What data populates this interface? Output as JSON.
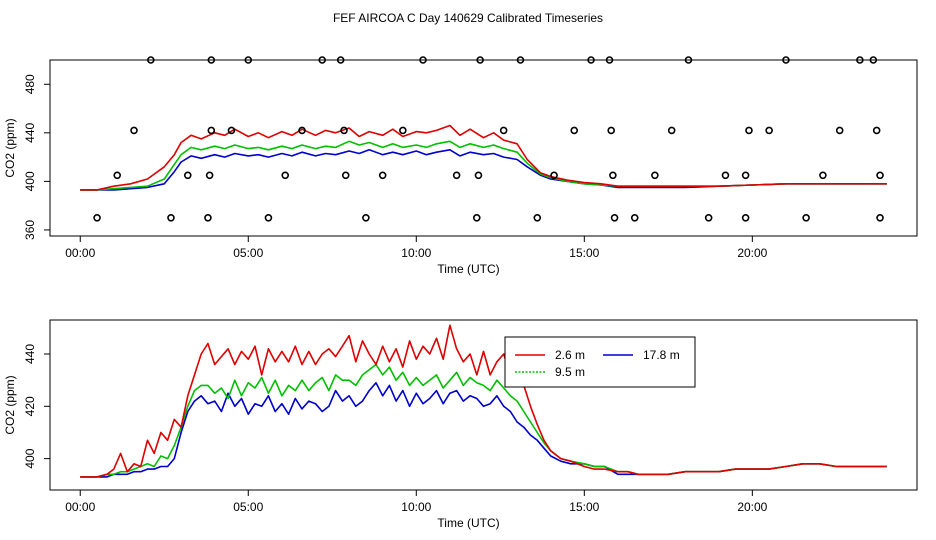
{
  "figure_title": "FEF AIRCOA C  Day 140629  Calibrated Timeseries",
  "colors": {
    "s26": "#dd0000",
    "s95": "#00c000",
    "s178": "#0000cc",
    "dots": "#000000"
  },
  "chart_data": [
    {
      "type": "line",
      "title": "",
      "xlabel": "Time (UTC)",
      "ylabel": "CO2 (ppm)",
      "xlim": [
        -0.9,
        24.9
      ],
      "ylim": [
        355,
        500
      ],
      "x_ticks": [
        0,
        5,
        10,
        15,
        20
      ],
      "x_tick_labels": [
        "00:00",
        "05:00",
        "10:00",
        "15:00",
        "20:00"
      ],
      "y_ticks": [
        360,
        400,
        440,
        480
      ],
      "y_tick_labels": [
        "360",
        "400",
        "440",
        "480"
      ],
      "series": [
        {
          "name": "2.6 m",
          "color": "#dd0000",
          "x": [
            0,
            0.5,
            1,
            1.5,
            2,
            2.5,
            2.8,
            3,
            3.3,
            3.6,
            4,
            4.3,
            4.6,
            5,
            5.3,
            5.6,
            6,
            6.3,
            6.6,
            7,
            7.3,
            7.6,
            8,
            8.3,
            8.6,
            9,
            9.3,
            9.6,
            10,
            10.3,
            10.6,
            11,
            11.3,
            11.6,
            12,
            12.3,
            12.6,
            13,
            13.3,
            13.7,
            14,
            14.5,
            15,
            15.5,
            16,
            17,
            18,
            19,
            20,
            21,
            22,
            23,
            24
          ],
          "y": [
            393,
            393,
            396,
            398,
            402,
            412,
            422,
            432,
            438,
            435,
            440,
            438,
            443,
            437,
            440,
            436,
            441,
            438,
            443,
            438,
            442,
            440,
            444,
            437,
            441,
            438,
            443,
            437,
            441,
            440,
            442,
            446,
            438,
            443,
            436,
            440,
            434,
            431,
            418,
            407,
            404,
            401,
            399,
            398,
            396,
            396,
            396,
            396,
            397,
            398,
            398,
            398,
            398
          ]
        },
        {
          "name": "9.5 m",
          "color": "#00c000",
          "x": [
            0,
            0.5,
            1,
            1.5,
            2,
            2.5,
            2.8,
            3,
            3.3,
            3.6,
            4,
            4.3,
            4.6,
            5,
            5.3,
            5.6,
            6,
            6.3,
            6.6,
            7,
            7.3,
            7.6,
            8,
            8.3,
            8.6,
            9,
            9.3,
            9.6,
            10,
            10.3,
            10.6,
            11,
            11.3,
            11.6,
            12,
            12.3,
            12.6,
            13,
            13.3,
            13.7,
            14,
            14.5,
            15,
            15.5,
            16,
            17,
            18,
            19,
            20,
            21,
            22,
            23,
            24
          ],
          "y": [
            393,
            393,
            394,
            395,
            396,
            402,
            414,
            422,
            428,
            426,
            429,
            427,
            430,
            427,
            428,
            426,
            429,
            427,
            430,
            427,
            429,
            428,
            433,
            430,
            432,
            428,
            431,
            428,
            430,
            428,
            431,
            433,
            428,
            431,
            428,
            430,
            427,
            424,
            415,
            406,
            403,
            400,
            398,
            397,
            396,
            396,
            396,
            396,
            397,
            398,
            398,
            398,
            398
          ]
        },
        {
          "name": "17.8 m",
          "color": "#0000cc",
          "x": [
            0,
            0.5,
            1,
            1.5,
            2,
            2.5,
            2.8,
            3,
            3.3,
            3.6,
            4,
            4.3,
            4.6,
            5,
            5.3,
            5.6,
            6,
            6.3,
            6.6,
            7,
            7.3,
            7.6,
            8,
            8.3,
            8.6,
            9,
            9.3,
            9.6,
            10,
            10.3,
            10.6,
            11,
            11.3,
            11.6,
            12,
            12.3,
            12.6,
            13,
            13.3,
            13.7,
            14,
            14.5,
            15,
            15.5,
            16,
            17,
            18,
            19,
            20,
            21,
            22,
            23,
            24
          ],
          "y": [
            393,
            393,
            393,
            394,
            395,
            398,
            408,
            416,
            421,
            419,
            422,
            420,
            423,
            421,
            422,
            420,
            423,
            421,
            424,
            421,
            423,
            422,
            425,
            423,
            426,
            422,
            424,
            422,
            425,
            422,
            424,
            426,
            421,
            424,
            422,
            423,
            420,
            418,
            412,
            405,
            402,
            400,
            398,
            397,
            395,
            395,
            395,
            396,
            397,
            398,
            398,
            398,
            398
          ]
        }
      ],
      "calibration_points": {
        "color": "#000000",
        "x": [
          0.5,
          1.1,
          1.6,
          2.1,
          2.7,
          3.2,
          3.8,
          3.85,
          3.9,
          3.9,
          4.5,
          5.0,
          5.6,
          6.1,
          6.6,
          7.2,
          7.75,
          7.85,
          7.9,
          8.5,
          9.0,
          9.6,
          10.2,
          11.2,
          11.8,
          11.85,
          11.9,
          12.6,
          13.1,
          13.6,
          14.1,
          14.7,
          15.2,
          15.75,
          15.8,
          15.85,
          15.9,
          16.5,
          17.1,
          17.6,
          18.1,
          18.7,
          19.2,
          19.8,
          19.8,
          19.9,
          20.5,
          21.0,
          21.6,
          22.1,
          22.6,
          23.2,
          23.6,
          23.7,
          23.8,
          23.8
        ],
        "y": [
          370,
          405,
          442,
          500,
          370,
          405,
          370,
          405,
          442,
          500,
          442,
          500,
          370,
          405,
          442,
          500,
          500,
          442,
          405,
          370,
          405,
          442,
          500,
          405,
          370,
          405,
          500,
          442,
          500,
          370,
          405,
          442,
          500,
          500,
          442,
          405,
          370,
          370,
          405,
          442,
          500,
          370,
          405,
          370,
          405,
          442,
          442,
          500,
          370,
          405,
          442,
          500,
          500,
          442,
          370,
          405
        ]
      }
    },
    {
      "type": "line",
      "title": "",
      "xlabel": "Time (UTC)",
      "ylabel": "CO2 (ppm)",
      "xlim": [
        -0.9,
        24.9
      ],
      "ylim": [
        388,
        453
      ],
      "x_ticks": [
        0,
        5,
        10,
        15,
        20
      ],
      "x_tick_labels": [
        "00:00",
        "05:00",
        "10:00",
        "15:00",
        "20:00"
      ],
      "y_ticks": [
        400,
        420,
        440
      ],
      "y_tick_labels": [
        "400",
        "420",
        "440"
      ],
      "legend": [
        "2.6 m",
        "9.5 m",
        "17.8 m"
      ],
      "legend_position": "top-right",
      "series": [
        {
          "name": "2.6 m",
          "color": "#dd0000",
          "x": [
            0,
            0.5,
            0.8,
            1.0,
            1.2,
            1.4,
            1.6,
            1.8,
            2.0,
            2.2,
            2.4,
            2.6,
            2.8,
            3.0,
            3.2,
            3.4,
            3.6,
            3.8,
            4.0,
            4.2,
            4.4,
            4.6,
            4.8,
            5.0,
            5.2,
            5.4,
            5.6,
            5.8,
            6.0,
            6.2,
            6.4,
            6.6,
            6.8,
            7.0,
            7.2,
            7.4,
            7.6,
            7.8,
            8.0,
            8.2,
            8.4,
            8.6,
            8.8,
            9.0,
            9.2,
            9.4,
            9.6,
            9.8,
            10.0,
            10.2,
            10.4,
            10.6,
            10.8,
            11.0,
            11.2,
            11.4,
            11.6,
            11.8,
            12.0,
            12.2,
            12.4,
            12.6,
            12.8,
            13.0,
            13.2,
            13.4,
            13.6,
            13.8,
            14.0,
            14.3,
            14.6,
            15.0,
            15.3,
            15.6,
            16.0,
            16.3,
            16.6,
            17.0,
            17.5,
            18.0,
            18.5,
            19.0,
            19.5,
            20.0,
            20.5,
            21.0,
            21.5,
            22.0,
            22.5,
            23.0,
            23.5,
            24.0
          ],
          "y": [
            393,
            393,
            394,
            396,
            402,
            395,
            398,
            397,
            407,
            402,
            410,
            407,
            415,
            412,
            424,
            432,
            440,
            444,
            436,
            439,
            442,
            436,
            441,
            438,
            443,
            432,
            442,
            437,
            441,
            437,
            443,
            436,
            441,
            436,
            440,
            442,
            439,
            443,
            447,
            437,
            445,
            440,
            436,
            443,
            437,
            442,
            435,
            445,
            438,
            443,
            440,
            446,
            438,
            451,
            442,
            437,
            440,
            432,
            441,
            432,
            437,
            440,
            432,
            436,
            428,
            420,
            413,
            407,
            403,
            400,
            399,
            397,
            396,
            396,
            395,
            395,
            394,
            394,
            394,
            395,
            395,
            395,
            396,
            396,
            396,
            397,
            398,
            398,
            397,
            397,
            397,
            397
          ]
        },
        {
          "name": "9.5 m",
          "color": "#00c000",
          "x": [
            0,
            0.5,
            0.8,
            1.0,
            1.2,
            1.4,
            1.6,
            1.8,
            2.0,
            2.2,
            2.4,
            2.6,
            2.8,
            3.0,
            3.2,
            3.4,
            3.6,
            3.8,
            4.0,
            4.2,
            4.4,
            4.6,
            4.8,
            5.0,
            5.2,
            5.4,
            5.6,
            5.8,
            6.0,
            6.2,
            6.4,
            6.6,
            6.8,
            7.0,
            7.2,
            7.4,
            7.6,
            7.8,
            8.0,
            8.2,
            8.4,
            8.6,
            8.8,
            9.0,
            9.2,
            9.4,
            9.6,
            9.8,
            10.0,
            10.2,
            10.4,
            10.6,
            10.8,
            11.0,
            11.2,
            11.4,
            11.6,
            11.8,
            12.0,
            12.2,
            12.4,
            12.6,
            12.8,
            13.0,
            13.2,
            13.4,
            13.6,
            13.8,
            14.0,
            14.3,
            14.6,
            15.0,
            15.3,
            15.6,
            16.0,
            16.3,
            16.6,
            17.0,
            17.5,
            18.0,
            18.5,
            19.0,
            19.5,
            20.0,
            20.5,
            21.0,
            21.5,
            22.0,
            22.5,
            23.0,
            23.5,
            24.0
          ],
          "y": [
            393,
            393,
            394,
            394,
            395,
            395,
            396,
            397,
            398,
            397,
            401,
            400,
            405,
            412,
            420,
            426,
            428,
            428,
            425,
            427,
            423,
            430,
            424,
            429,
            427,
            431,
            425,
            430,
            424,
            428,
            426,
            430,
            426,
            429,
            431,
            426,
            432,
            430,
            430,
            428,
            432,
            434,
            436,
            432,
            435,
            430,
            433,
            428,
            431,
            428,
            430,
            432,
            427,
            430,
            433,
            428,
            431,
            429,
            428,
            426,
            430,
            427,
            424,
            422,
            418,
            414,
            410,
            406,
            403,
            400,
            399,
            398,
            397,
            397,
            395,
            395,
            394,
            394,
            394,
            395,
            395,
            395,
            396,
            396,
            396,
            397,
            398,
            398,
            397,
            397,
            397,
            397
          ]
        },
        {
          "name": "17.8 m",
          "color": "#0000cc",
          "x": [
            0,
            0.5,
            0.8,
            1.0,
            1.2,
            1.4,
            1.6,
            1.8,
            2.0,
            2.2,
            2.4,
            2.6,
            2.8,
            3.0,
            3.2,
            3.4,
            3.6,
            3.8,
            4.0,
            4.2,
            4.4,
            4.6,
            4.8,
            5.0,
            5.2,
            5.4,
            5.6,
            5.8,
            6.0,
            6.2,
            6.4,
            6.6,
            6.8,
            7.0,
            7.2,
            7.4,
            7.6,
            7.8,
            8.0,
            8.2,
            8.4,
            8.6,
            8.8,
            9.0,
            9.2,
            9.4,
            9.6,
            9.8,
            10.0,
            10.2,
            10.4,
            10.6,
            10.8,
            11.0,
            11.2,
            11.4,
            11.6,
            11.8,
            12.0,
            12.2,
            12.4,
            12.6,
            12.8,
            13.0,
            13.2,
            13.4,
            13.6,
            13.8,
            14.0,
            14.3,
            14.6,
            15.0,
            15.3,
            15.6,
            16.0,
            16.3,
            16.6,
            17.0,
            17.5,
            18.0,
            18.5,
            19.0,
            19.5,
            20.0,
            20.5,
            21.0,
            21.5,
            22.0,
            22.5,
            23.0,
            23.5,
            24.0
          ],
          "y": [
            393,
            393,
            393,
            394,
            394,
            394,
            395,
            395,
            396,
            396,
            397,
            397,
            400,
            410,
            418,
            422,
            424,
            421,
            422,
            418,
            425,
            420,
            423,
            417,
            421,
            420,
            424,
            418,
            421,
            417,
            423,
            419,
            422,
            421,
            418,
            420,
            426,
            422,
            424,
            420,
            422,
            426,
            429,
            424,
            428,
            422,
            426,
            420,
            425,
            421,
            423,
            426,
            421,
            425,
            426,
            422,
            424,
            423,
            420,
            421,
            424,
            420,
            418,
            414,
            412,
            409,
            407,
            404,
            401,
            399,
            398,
            398,
            397,
            397,
            394,
            394,
            394,
            394,
            394,
            395,
            395,
            395,
            396,
            396,
            396,
            397,
            398,
            398,
            397,
            397,
            397,
            397
          ]
        }
      ]
    }
  ]
}
